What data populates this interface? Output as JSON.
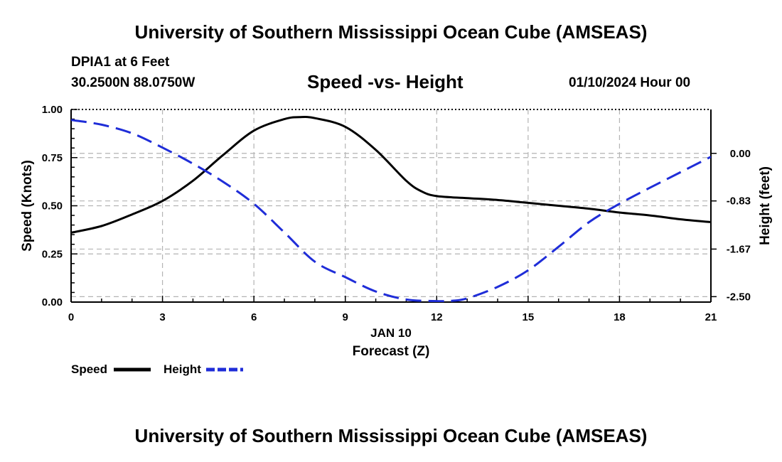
{
  "header": {
    "title": "University of Southern Mississippi Ocean Cube (AMSEAS)",
    "station": "DPIA1 at 6 Feet",
    "coords": "30.2500N  88.0750W",
    "datetime": "01/10/2024 Hour 00"
  },
  "footer": {
    "title": "University of Southern Mississippi Ocean Cube (AMSEAS)"
  },
  "chart_data": {
    "type": "line",
    "title": "Speed -vs- Height",
    "xlabel": "Forecast (Z)",
    "xsublabel": "JAN 10",
    "xlim": [
      0,
      21
    ],
    "xticks": [
      0,
      3,
      6,
      9,
      12,
      15,
      18,
      21
    ],
    "xtick_labels": [
      "0",
      "3",
      "6",
      "9",
      "12",
      "15",
      "18",
      "21"
    ],
    "ylabel_left": "Speed (Knots)",
    "ylim_left": [
      0,
      1
    ],
    "yticks_left": [
      0,
      0.25,
      0.5,
      0.75,
      1.0
    ],
    "ytick_labels_left": [
      "0.00",
      "0.25",
      "0.50",
      "0.75",
      "1.00"
    ],
    "ylabel_right": "Height (feet)",
    "ylim_right": [
      -2.5948,
      0.7659
    ],
    "yticks_right": [
      0.0,
      -0.83,
      -1.67,
      -2.5
    ],
    "ytick_labels_right": [
      "0.00",
      "-0.83",
      "-1.67",
      "-2.50"
    ],
    "grid": true,
    "legend": "bottom-left",
    "series": [
      {
        "name": "Speed",
        "axis": "left",
        "color": "#000000",
        "style": "solid",
        "x": [
          0,
          1,
          2,
          3,
          4,
          5,
          6,
          7,
          7.5,
          8,
          9,
          10,
          11,
          11.5,
          12,
          13,
          14,
          15,
          16,
          17,
          18,
          19,
          20,
          21
        ],
        "y": [
          0.36,
          0.395,
          0.455,
          0.525,
          0.63,
          0.765,
          0.89,
          0.95,
          0.96,
          0.955,
          0.91,
          0.79,
          0.63,
          0.575,
          0.55,
          0.54,
          0.53,
          0.515,
          0.5,
          0.485,
          0.465,
          0.45,
          0.43,
          0.415
        ]
      },
      {
        "name": "Height",
        "axis": "right",
        "color": "#1f2dd8",
        "style": "dashed",
        "x": [
          0,
          1,
          2,
          3,
          4,
          5,
          6,
          7,
          8,
          9,
          10,
          11,
          12,
          12.5,
          13,
          14,
          15,
          16,
          17,
          18,
          19,
          20,
          21
        ],
        "y": [
          0.583,
          0.5,
          0.35,
          0.1,
          -0.18,
          -0.5,
          -0.88,
          -1.38,
          -1.89,
          -2.16,
          -2.41,
          -2.55,
          -2.578,
          -2.572,
          -2.53,
          -2.33,
          -2.04,
          -1.63,
          -1.2,
          -0.88,
          -0.6,
          -0.33,
          -0.06
        ]
      }
    ]
  }
}
